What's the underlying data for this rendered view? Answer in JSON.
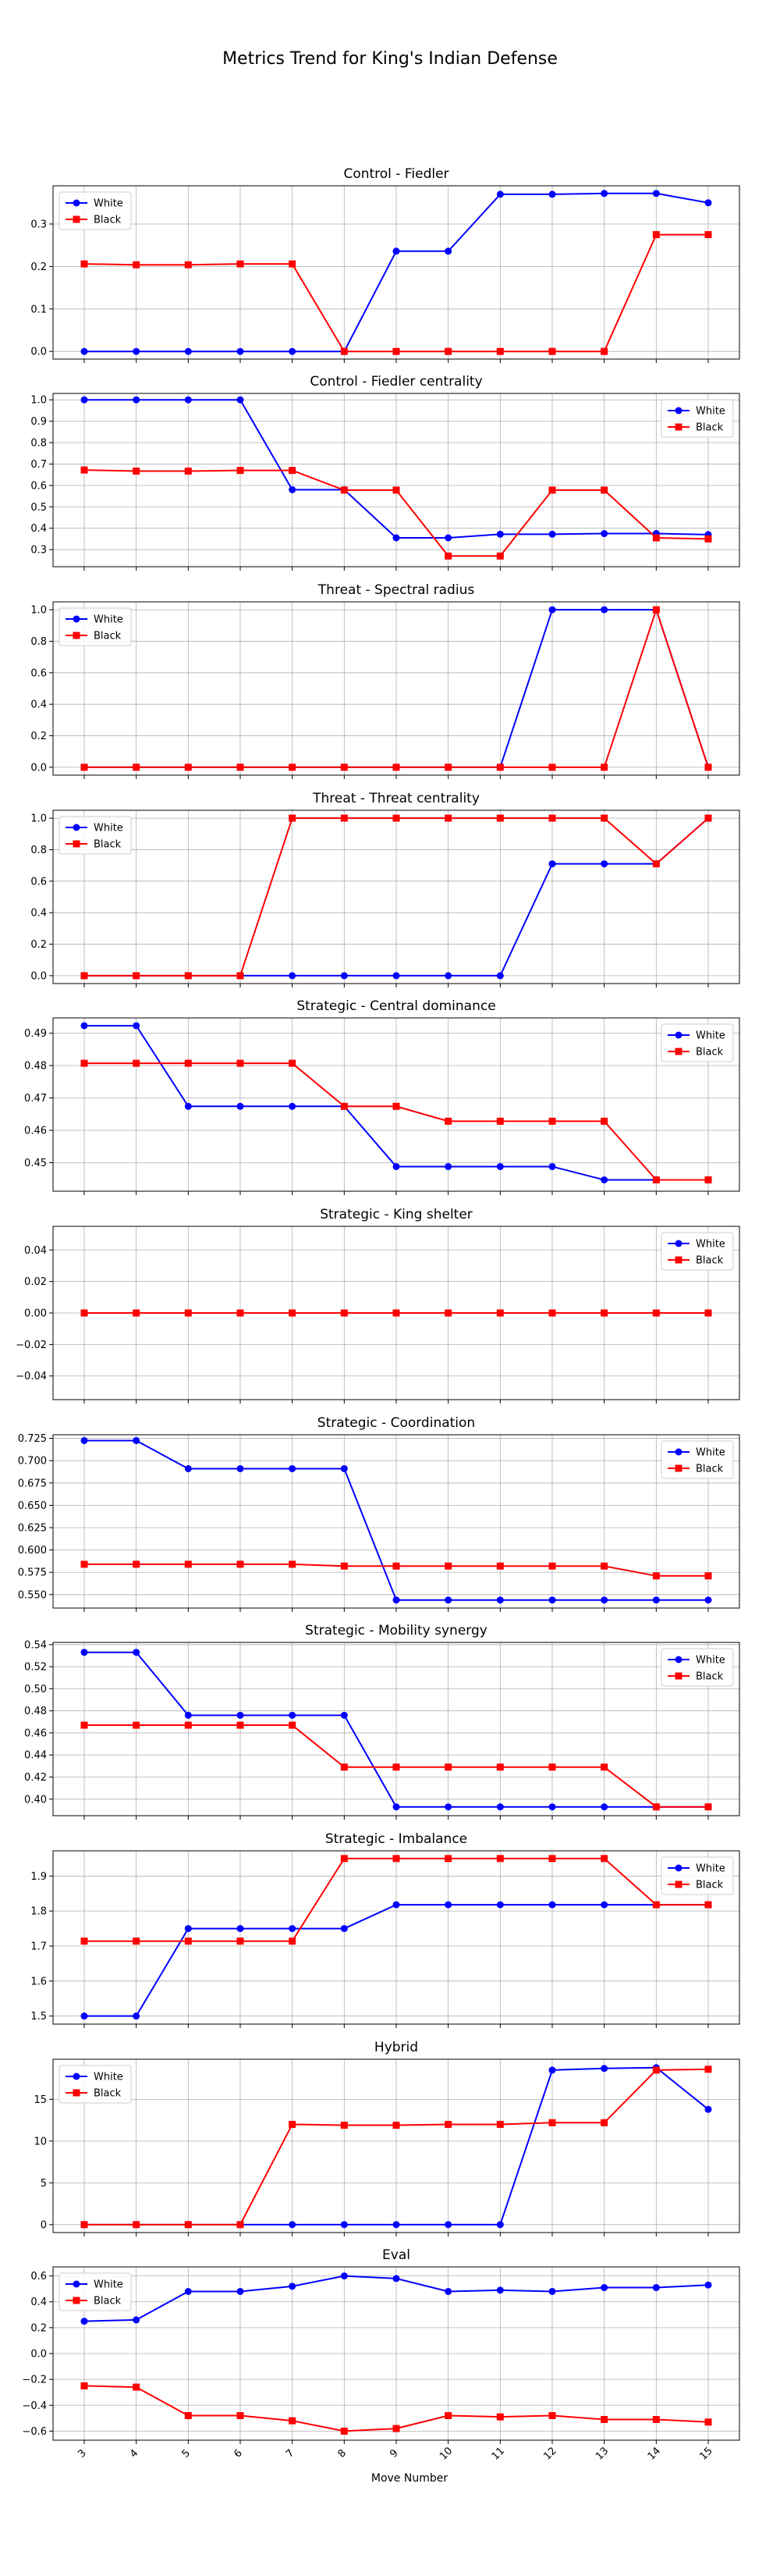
{
  "figure": {
    "title": "Metrics Trend for King's Indian Defense",
    "xlabel": "Move Number"
  },
  "colors": {
    "White": "#0000ff",
    "Black": "#ff0000"
  },
  "chart_data": [
    {
      "type": "line",
      "title": "Control - Fiedler",
      "x": [
        3,
        4,
        5,
        6,
        7,
        8,
        9,
        10,
        11,
        12,
        13,
        14,
        15
      ],
      "ylim": [
        -0.018,
        0.39
      ],
      "yticks": [
        0.0,
        0.1,
        0.2,
        0.3
      ],
      "ytick_labels": [
        "0.0",
        "0.1",
        "0.2",
        "0.3"
      ],
      "legend": "upper left",
      "series": [
        {
          "name": "White",
          "values": [
            0,
            0,
            0,
            0,
            0,
            0,
            0.236,
            0.236,
            0.37,
            0.37,
            0.372,
            0.372,
            0.35
          ]
        },
        {
          "name": "Black",
          "values": [
            0.206,
            0.204,
            0.204,
            0.206,
            0.206,
            0,
            0,
            0,
            0,
            0,
            0,
            0.275,
            0.275
          ]
        }
      ]
    },
    {
      "type": "line",
      "title": "Control - Fiedler centrality",
      "x": [
        3,
        4,
        5,
        6,
        7,
        8,
        9,
        10,
        11,
        12,
        13,
        14,
        15
      ],
      "ylim": [
        0.22,
        1.03
      ],
      "yticks": [
        0.3,
        0.4,
        0.5,
        0.6,
        0.7,
        0.8,
        0.9,
        1.0
      ],
      "ytick_labels": [
        "0.3",
        "0.4",
        "0.5",
        "0.6",
        "0.7",
        "0.8",
        "0.9",
        "1.0"
      ],
      "legend": "upper right",
      "series": [
        {
          "name": "White",
          "values": [
            1.0,
            1.0,
            1.0,
            1.0,
            0.58,
            0.58,
            0.355,
            0.355,
            0.372,
            0.372,
            0.375,
            0.375,
            0.37
          ]
        },
        {
          "name": "Black",
          "values": [
            0.672,
            0.667,
            0.667,
            0.67,
            0.67,
            0.578,
            0.578,
            0.27,
            0.27,
            0.578,
            0.578,
            0.355,
            0.35
          ]
        }
      ]
    },
    {
      "type": "line",
      "title": "Threat - Spectral radius",
      "x": [
        3,
        4,
        5,
        6,
        7,
        8,
        9,
        10,
        11,
        12,
        13,
        14,
        15
      ],
      "ylim": [
        -0.05,
        1.05
      ],
      "yticks": [
        0.0,
        0.2,
        0.4,
        0.6,
        0.8,
        1.0
      ],
      "ytick_labels": [
        "0.0",
        "0.2",
        "0.4",
        "0.6",
        "0.8",
        "1.0"
      ],
      "legend": "upper left",
      "series": [
        {
          "name": "White",
          "values": [
            0,
            0,
            0,
            0,
            0,
            0,
            0,
            0,
            0,
            1,
            1,
            1,
            0
          ]
        },
        {
          "name": "Black",
          "values": [
            0,
            0,
            0,
            0,
            0,
            0,
            0,
            0,
            0,
            0,
            0,
            1,
            0
          ]
        }
      ]
    },
    {
      "type": "line",
      "title": "Threat - Threat centrality",
      "x": [
        3,
        4,
        5,
        6,
        7,
        8,
        9,
        10,
        11,
        12,
        13,
        14,
        15
      ],
      "ylim": [
        -0.05,
        1.05
      ],
      "yticks": [
        0.0,
        0.2,
        0.4,
        0.6,
        0.8,
        1.0
      ],
      "ytick_labels": [
        "0.0",
        "0.2",
        "0.4",
        "0.6",
        "0.8",
        "1.0"
      ],
      "legend": "upper left",
      "series": [
        {
          "name": "White",
          "values": [
            0,
            0,
            0,
            0,
            0,
            0,
            0,
            0,
            0,
            0.71,
            0.71,
            0.71,
            1.0
          ]
        },
        {
          "name": "Black",
          "values": [
            0,
            0,
            0,
            0,
            1,
            1,
            1,
            1,
            1,
            1,
            1,
            0.71,
            1.0
          ]
        }
      ]
    },
    {
      "type": "line",
      "title": "Strategic - Central dominance",
      "x": [
        3,
        4,
        5,
        6,
        7,
        8,
        9,
        10,
        11,
        12,
        13,
        14,
        15
      ],
      "ylim": [
        0.4412,
        0.4947
      ],
      "yticks": [
        0.45,
        0.46,
        0.47,
        0.48,
        0.49
      ],
      "ytick_labels": [
        "0.45",
        "0.46",
        "0.47",
        "0.48",
        "0.49"
      ],
      "legend": "upper right",
      "series": [
        {
          "name": "White",
          "values": [
            0.4923,
            0.4923,
            0.4674,
            0.4674,
            0.4674,
            0.4674,
            0.4488,
            0.4488,
            0.4488,
            0.4488,
            0.4447,
            0.4447,
            0.4447
          ]
        },
        {
          "name": "Black",
          "values": [
            0.4807,
            0.4807,
            0.4807,
            0.4807,
            0.4807,
            0.4674,
            0.4674,
            0.4628,
            0.4628,
            0.4628,
            0.4628,
            0.4447,
            0.4447
          ]
        }
      ]
    },
    {
      "type": "line",
      "title": "Strategic - King shelter",
      "x": [
        3,
        4,
        5,
        6,
        7,
        8,
        9,
        10,
        11,
        12,
        13,
        14,
        15
      ],
      "ylim": [
        -0.055,
        0.055
      ],
      "yticks": [
        -0.04,
        -0.02,
        0.0,
        0.02,
        0.04
      ],
      "ytick_labels": [
        "−0.04",
        "−0.02",
        "0.00",
        "0.02",
        "0.04"
      ],
      "legend": "upper right",
      "series": [
        {
          "name": "White",
          "values": [
            0,
            0,
            0,
            0,
            0,
            0,
            0,
            0,
            0,
            0,
            0,
            0,
            0
          ]
        },
        {
          "name": "Black",
          "values": [
            0,
            0,
            0,
            0,
            0,
            0,
            0,
            0,
            0,
            0,
            0,
            0,
            0
          ]
        }
      ]
    },
    {
      "type": "line",
      "title": "Strategic - Coordination",
      "x": [
        3,
        4,
        5,
        6,
        7,
        8,
        9,
        10,
        11,
        12,
        13,
        14,
        15
      ],
      "ylim": [
        0.535,
        0.729
      ],
      "yticks": [
        0.55,
        0.575,
        0.6,
        0.625,
        0.65,
        0.675,
        0.7,
        0.725
      ],
      "ytick_labels": [
        "0.550",
        "0.575",
        "0.600",
        "0.625",
        "0.650",
        "0.675",
        "0.700",
        "0.725"
      ],
      "legend": "upper right",
      "series": [
        {
          "name": "White",
          "values": [
            0.7225,
            0.7225,
            0.691,
            0.691,
            0.691,
            0.691,
            0.544,
            0.544,
            0.544,
            0.544,
            0.544,
            0.544,
            0.544
          ]
        },
        {
          "name": "Black",
          "values": [
            0.584,
            0.584,
            0.584,
            0.584,
            0.584,
            0.582,
            0.582,
            0.582,
            0.582,
            0.582,
            0.582,
            0.571,
            0.571
          ]
        }
      ]
    },
    {
      "type": "line",
      "title": "Strategic - Mobility synergy",
      "x": [
        3,
        4,
        5,
        6,
        7,
        8,
        9,
        10,
        11,
        12,
        13,
        14,
        15
      ],
      "ylim": [
        0.385,
        0.542
      ],
      "yticks": [
        0.4,
        0.42,
        0.44,
        0.46,
        0.48,
        0.5,
        0.52,
        0.54
      ],
      "ytick_labels": [
        "0.40",
        "0.42",
        "0.44",
        "0.46",
        "0.48",
        "0.50",
        "0.52",
        "0.54"
      ],
      "legend": "upper right",
      "series": [
        {
          "name": "White",
          "values": [
            0.533,
            0.533,
            0.476,
            0.476,
            0.476,
            0.476,
            0.393,
            0.393,
            0.393,
            0.393,
            0.393,
            0.393,
            0.393
          ]
        },
        {
          "name": "Black",
          "values": [
            0.467,
            0.467,
            0.467,
            0.467,
            0.467,
            0.429,
            0.429,
            0.429,
            0.429,
            0.429,
            0.429,
            0.393,
            0.393
          ]
        }
      ]
    },
    {
      "type": "line",
      "title": "Strategic - Imbalance",
      "x": [
        3,
        4,
        5,
        6,
        7,
        8,
        9,
        10,
        11,
        12,
        13,
        14,
        15
      ],
      "ylim": [
        1.477,
        1.972
      ],
      "yticks": [
        1.5,
        1.6,
        1.7,
        1.8,
        1.9
      ],
      "ytick_labels": [
        "1.5",
        "1.6",
        "1.7",
        "1.8",
        "1.9"
      ],
      "legend": "upper right",
      "series": [
        {
          "name": "White",
          "values": [
            1.5,
            1.5,
            1.75,
            1.75,
            1.75,
            1.75,
            1.818,
            1.818,
            1.818,
            1.818,
            1.818,
            1.818,
            1.818
          ]
        },
        {
          "name": "Black",
          "values": [
            1.714,
            1.714,
            1.714,
            1.714,
            1.714,
            1.95,
            1.95,
            1.95,
            1.95,
            1.95,
            1.95,
            1.818,
            1.818
          ]
        }
      ]
    },
    {
      "type": "line",
      "title": "Hybrid",
      "x": [
        3,
        4,
        5,
        6,
        7,
        8,
        9,
        10,
        11,
        12,
        13,
        14,
        15
      ],
      "ylim": [
        -0.95,
        19.8
      ],
      "yticks": [
        0,
        5,
        10,
        15
      ],
      "ytick_labels": [
        "0",
        "5",
        "10",
        "15"
      ],
      "legend": "upper left",
      "series": [
        {
          "name": "White",
          "values": [
            0,
            0,
            0,
            0,
            0,
            0,
            0,
            0,
            0,
            18.5,
            18.7,
            18.8,
            13.8
          ]
        },
        {
          "name": "Black",
          "values": [
            0,
            0,
            0,
            0,
            12.0,
            11.9,
            11.9,
            12.0,
            12.0,
            12.2,
            12.2,
            18.5,
            18.6
          ]
        }
      ]
    },
    {
      "type": "line",
      "title": "Eval",
      "x": [
        3,
        4,
        5,
        6,
        7,
        8,
        9,
        10,
        11,
        12,
        13,
        14,
        15
      ],
      "ylim": [
        -0.67,
        0.67
      ],
      "yticks": [
        -0.6,
        -0.4,
        -0.2,
        0.0,
        0.2,
        0.4,
        0.6
      ],
      "ytick_labels": [
        "−0.6",
        "−0.4",
        "−0.2",
        "0.0",
        "0.2",
        "0.4",
        "0.6"
      ],
      "legend": "upper left",
      "series": [
        {
          "name": "White",
          "values": [
            0.25,
            0.26,
            0.48,
            0.48,
            0.52,
            0.6,
            0.58,
            0.48,
            0.49,
            0.48,
            0.51,
            0.51,
            0.53
          ]
        },
        {
          "name": "Black",
          "values": [
            -0.25,
            -0.26,
            -0.48,
            -0.48,
            -0.52,
            -0.6,
            -0.58,
            -0.48,
            -0.49,
            -0.48,
            -0.51,
            -0.51,
            -0.53
          ]
        }
      ]
    }
  ]
}
